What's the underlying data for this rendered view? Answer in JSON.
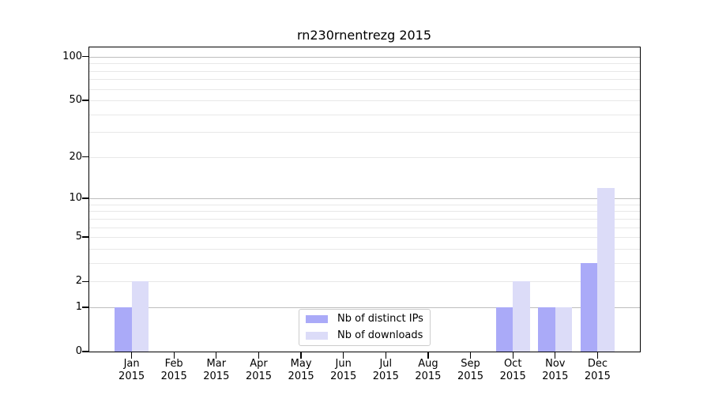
{
  "chart_data": {
    "type": "bar",
    "title": "rn230rnentrezg 2015",
    "categories": [
      "Jan",
      "Feb",
      "Mar",
      "Apr",
      "May",
      "Jun",
      "Jul",
      "Aug",
      "Sep",
      "Oct",
      "Nov",
      "Dec"
    ],
    "x_tick_year": "2015",
    "series": [
      {
        "name": "Nb of distinct IPs",
        "color": "#aaaaf8",
        "values": [
          1,
          0,
          0,
          0,
          0,
          0,
          0,
          0,
          0,
          1,
          1,
          3
        ]
      },
      {
        "name": "Nb of downloads",
        "color": "#dcdcf8",
        "values": [
          2,
          0,
          0,
          0,
          0,
          0,
          0,
          0,
          0,
          2,
          1,
          12
        ]
      }
    ],
    "yaxis": {
      "scale": "log1p",
      "ylim": [
        0,
        115.7
      ],
      "tick_values": [
        0,
        1,
        2,
        5,
        10,
        20,
        50,
        100
      ],
      "tick_labels": [
        "0",
        "1",
        "2",
        "5",
        "10",
        "20",
        "50",
        "100"
      ],
      "major_gridlines": [
        1,
        10,
        100
      ],
      "minor_gridlines": [
        2,
        3,
        4,
        5,
        6,
        7,
        8,
        9,
        20,
        30,
        40,
        50,
        60,
        70,
        80,
        90
      ],
      "grid_major_color": "#bdbdbd",
      "grid_minor_color": "#e8e8e8"
    },
    "legend": {
      "position": "lower center"
    },
    "grid": true
  }
}
